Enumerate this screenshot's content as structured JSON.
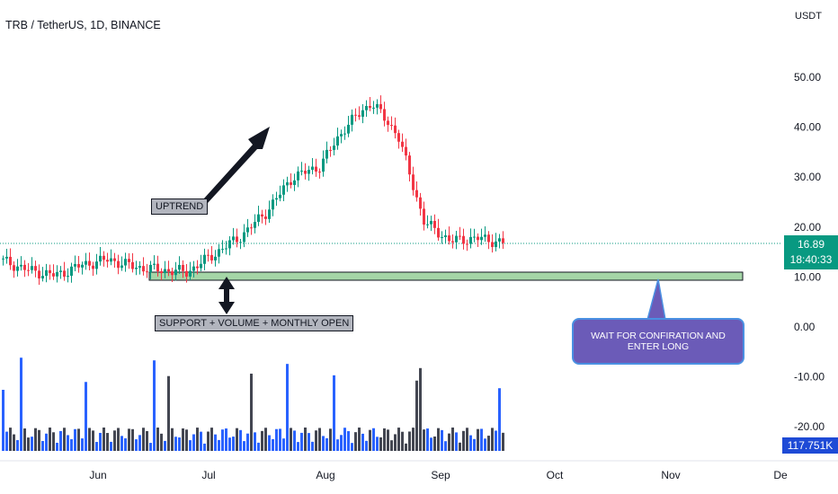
{
  "header": {
    "symbol_title": "TRB / TetherUS, 1D, BINANCE"
  },
  "price_axis": {
    "currency": "USDT",
    "current_price": "16.89",
    "countdown": "18:40:33",
    "volume_value": "117.751K"
  },
  "annotations": {
    "uptrend": "UPTREND",
    "support": "SUPPORT + VOLUME + MONTHLY OPEN",
    "callout": "WAIT FOR  CONFIRATION AND ENTER LONG"
  },
  "colors": {
    "up": "#089981",
    "down": "#f23645",
    "volume_up": "#2962ff",
    "volume_down": "#434651",
    "support_zone": "#a5d6a7",
    "callout_bg": "#6b5bb8"
  },
  "chart_data": {
    "type": "candlestick",
    "title": "TRB / TetherUS, 1D, BINANCE",
    "y_axis": {
      "unit": "USDT",
      "ticks": [
        50,
        40,
        30,
        20,
        10,
        0,
        -10,
        -20
      ],
      "tick_labels": [
        "50.00",
        "40.00",
        "30.00",
        "20.00",
        "10.00",
        "0.00",
        "-10.00",
        "-20.00"
      ]
    },
    "x_axis": {
      "tick_labels": [
        "Jun",
        "Jul",
        "Aug",
        "Sep",
        "Oct",
        "Nov",
        "De"
      ]
    },
    "last_price": 16.89,
    "support_zone": [
      10.0,
      11.6
    ],
    "series_close_approx": [
      {
        "date": "2023-05-01",
        "close": 13.2
      },
      {
        "date": "2023-05-10",
        "close": 11.3
      },
      {
        "date": "2023-05-20",
        "close": 10.3
      },
      {
        "date": "2023-06-01",
        "close": 12.4
      },
      {
        "date": "2023-06-08",
        "close": 13.5
      },
      {
        "date": "2023-06-15",
        "close": 12.0
      },
      {
        "date": "2023-06-22",
        "close": 11.4
      },
      {
        "date": "2023-07-01",
        "close": 11.0
      },
      {
        "date": "2023-07-10",
        "close": 14.5
      },
      {
        "date": "2023-07-20",
        "close": 18.0
      },
      {
        "date": "2023-07-31",
        "close": 23.0
      },
      {
        "date": "2023-08-05",
        "close": 30.0
      },
      {
        "date": "2023-08-12",
        "close": 32.0
      },
      {
        "date": "2023-08-17",
        "close": 40.0
      },
      {
        "date": "2023-08-22",
        "close": 45.0
      },
      {
        "date": "2023-08-25",
        "close": 38.5
      },
      {
        "date": "2023-08-29",
        "close": 21.0
      },
      {
        "date": "2023-09-05",
        "close": 17.2
      },
      {
        "date": "2023-09-10",
        "close": 17.8
      },
      {
        "date": "2023-09-17",
        "close": 16.89
      }
    ]
  }
}
